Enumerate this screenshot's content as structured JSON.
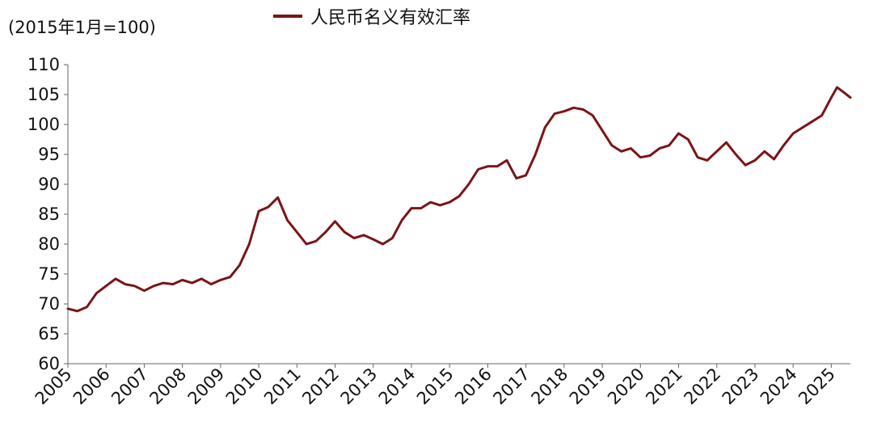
{
  "unit_label": "(2015年1月=100)",
  "chart_data": {
    "type": "line",
    "x_ticks": [
      "2005",
      "2006",
      "2007",
      "2008",
      "2009",
      "2010",
      "2011",
      "2012",
      "2013",
      "2014",
      "2015",
      "2016",
      "2017",
      "2018",
      "2019",
      "2020",
      "2021",
      "2022",
      "2023",
      "2024",
      "2025"
    ],
    "xlim": [
      2005,
      2025.5
    ],
    "ylim": [
      60,
      110
    ],
    "y_ticks": [
      60,
      65,
      70,
      75,
      80,
      85,
      90,
      95,
      100,
      105,
      110
    ],
    "grid": false,
    "legend_position": "top-center",
    "series": [
      {
        "name": "人民币名义有效汇率",
        "color": "#7a1418",
        "points": [
          [
            2005.0,
            69.2
          ],
          [
            2005.25,
            68.8
          ],
          [
            2005.5,
            69.5
          ],
          [
            2005.75,
            71.8
          ],
          [
            2006.0,
            73.0
          ],
          [
            2006.25,
            74.2
          ],
          [
            2006.5,
            73.3
          ],
          [
            2006.75,
            73.0
          ],
          [
            2007.0,
            72.2
          ],
          [
            2007.25,
            73.0
          ],
          [
            2007.5,
            73.5
          ],
          [
            2007.75,
            73.3
          ],
          [
            2008.0,
            74.0
          ],
          [
            2008.25,
            73.5
          ],
          [
            2008.5,
            74.2
          ],
          [
            2008.75,
            73.3
          ],
          [
            2009.0,
            74.0
          ],
          [
            2009.25,
            74.5
          ],
          [
            2009.5,
            76.5
          ],
          [
            2009.75,
            80.0
          ],
          [
            2010.0,
            85.5
          ],
          [
            2010.25,
            86.2
          ],
          [
            2010.5,
            87.8
          ],
          [
            2010.75,
            84.0
          ],
          [
            2011.0,
            82.0
          ],
          [
            2011.25,
            80.0
          ],
          [
            2011.5,
            80.5
          ],
          [
            2011.75,
            82.0
          ],
          [
            2012.0,
            83.8
          ],
          [
            2012.25,
            82.0
          ],
          [
            2012.5,
            81.0
          ],
          [
            2012.75,
            81.5
          ],
          [
            2013.0,
            80.8
          ],
          [
            2013.25,
            80.0
          ],
          [
            2013.5,
            81.0
          ],
          [
            2013.75,
            84.0
          ],
          [
            2014.0,
            86.0
          ],
          [
            2014.25,
            86.0
          ],
          [
            2014.5,
            87.0
          ],
          [
            2014.75,
            86.5
          ],
          [
            2015.0,
            87.0
          ],
          [
            2015.25,
            88.0
          ],
          [
            2015.5,
            90.0
          ],
          [
            2015.75,
            92.5
          ],
          [
            2016.0,
            93.0
          ],
          [
            2016.25,
            93.0
          ],
          [
            2016.5,
            94.0
          ],
          [
            2016.75,
            91.0
          ],
          [
            2017.0,
            91.5
          ],
          [
            2017.25,
            95.0
          ],
          [
            2017.5,
            99.5
          ],
          [
            2017.75,
            101.8
          ],
          [
            2018.0,
            102.2
          ],
          [
            2018.25,
            102.8
          ],
          [
            2018.5,
            102.5
          ],
          [
            2018.75,
            101.5
          ],
          [
            2019.0,
            99.0
          ],
          [
            2019.25,
            96.5
          ],
          [
            2019.5,
            95.5
          ],
          [
            2019.75,
            96.0
          ],
          [
            2020.0,
            94.5
          ],
          [
            2020.25,
            94.8
          ],
          [
            2020.5,
            96.0
          ],
          [
            2020.75,
            96.5
          ],
          [
            2021.0,
            98.5
          ],
          [
            2021.25,
            97.5
          ],
          [
            2021.5,
            94.5
          ],
          [
            2021.75,
            94.0
          ],
          [
            2022.0,
            95.5
          ],
          [
            2022.25,
            97.0
          ],
          [
            2022.5,
            95.0
          ],
          [
            2022.75,
            93.2
          ],
          [
            2023.0,
            94.0
          ],
          [
            2023.25,
            95.5
          ],
          [
            2023.5,
            94.2
          ],
          [
            2023.75,
            96.5
          ],
          [
            2024.0,
            98.5
          ],
          [
            2024.25,
            99.5
          ],
          [
            2024.5,
            100.5
          ],
          [
            2024.75,
            101.5
          ],
          [
            2025.0,
            104.5
          ],
          [
            2025.15,
            106.2
          ],
          [
            2025.3,
            105.5
          ],
          [
            2025.5,
            104.5
          ]
        ]
      }
    ]
  }
}
